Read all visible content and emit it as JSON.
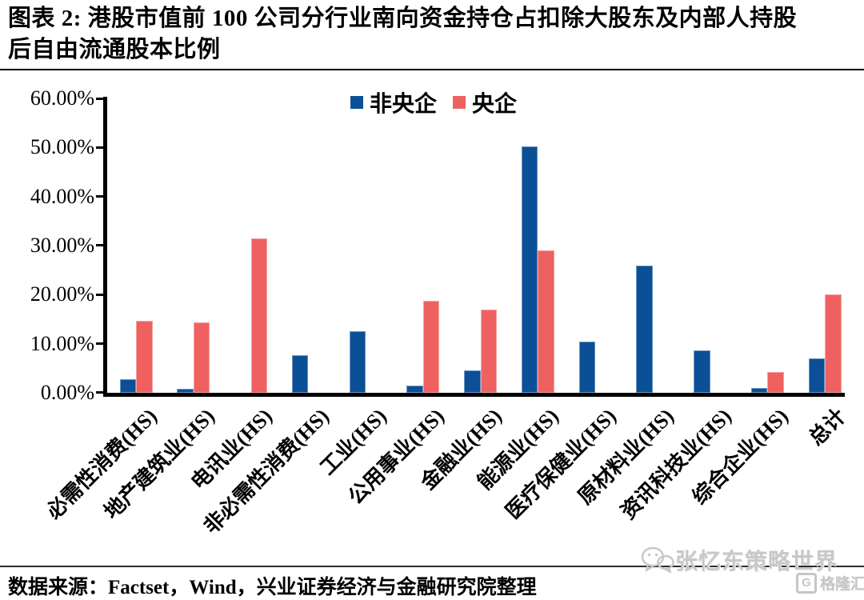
{
  "title": {
    "line1": "图表 2:  港股市值前 100 公司分行业南向资金持仓占扣除大股东及内部人持股",
    "line2": "后自由流通股本比例"
  },
  "legend": {
    "items": [
      {
        "label": "非央企",
        "color": "#0B4F96"
      },
      {
        "label": "央企",
        "color": "#EF6161"
      }
    ]
  },
  "chart_data": {
    "type": "bar",
    "title": "港股市值前100公司分行业南向资金持仓占扣除大股东及内部人持股后自由流通股本比例",
    "categories": [
      "必需性消费(HS)",
      "地产建筑业(HS)",
      "电讯业(HS)",
      "非必需性消费(HS)",
      "工业(HS)",
      "公用事业(HS)",
      "金融业(HS)",
      "能源业(HS)",
      "医疗保健业(HS)",
      "原材料业(HS)",
      "资讯科技业(HS)",
      "综合企业(HS)",
      "总计"
    ],
    "series": [
      {
        "name": "非央企",
        "color": "#0B4F96",
        "values": [
          2.7,
          0.8,
          0,
          7.7,
          12.6,
          1.4,
          4.5,
          50.3,
          10.4,
          26.0,
          8.6,
          1.0,
          7.0
        ]
      },
      {
        "name": "央企",
        "color": "#EF6161",
        "values": [
          14.6,
          14.4,
          31.4,
          0,
          0,
          18.8,
          16.9,
          29.0,
          0,
          0,
          0,
          4.3,
          20.0
        ]
      }
    ],
    "ylabel": "",
    "xlabel": "",
    "ylim": [
      0,
      60
    ],
    "y_ticks": [
      "60.00%",
      "50.00%",
      "40.00%",
      "30.00%",
      "20.00%",
      "10.00%",
      "0.00%"
    ],
    "grid": false,
    "legend_position": "top-center"
  },
  "source": "数据来源：Factset，Wind，兴业证券经济与金融研究院整理",
  "watermarks": {
    "wechat_text": "张忆东策略世界",
    "gelonghui_letter": "G",
    "gelonghui_text": "格隆汇"
  }
}
